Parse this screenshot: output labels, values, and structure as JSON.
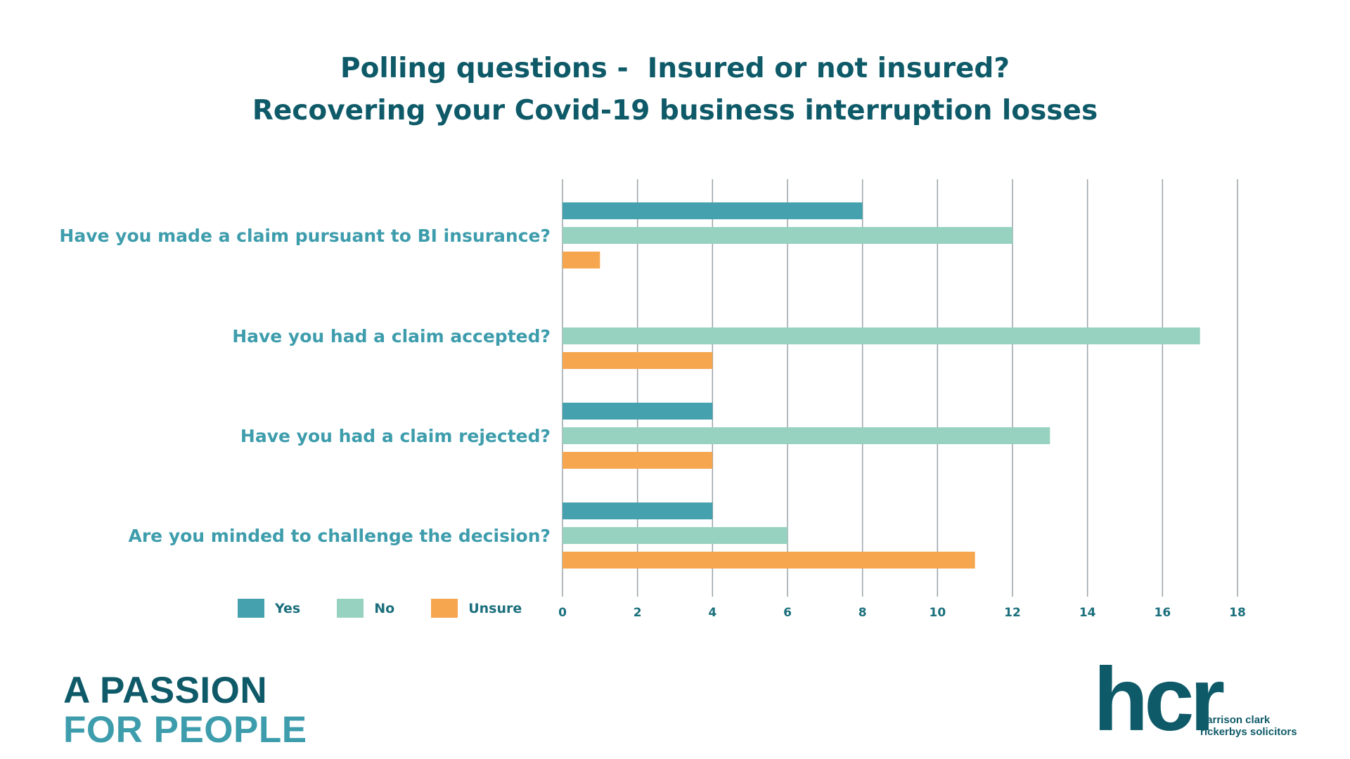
{
  "title": {
    "line1": "Polling questions -  Insured or not insured?",
    "line2": "Recovering your Covid-19 business interruption losses"
  },
  "legend": {
    "yes": "Yes",
    "no": "No",
    "unsure": "Unsure"
  },
  "colors": {
    "yes": "#44a1ad",
    "no": "#97d1bf",
    "unsure": "#f5a64f",
    "label": "#3e9dac",
    "title": "#0e5a68",
    "grid": "#9aa3a6"
  },
  "chart_data": {
    "type": "bar",
    "orientation": "horizontal",
    "categories": [
      "Have you made a claim pursuant to BI insurance?",
      "Have you had a claim accepted?",
      "Have you had a claim rejected?",
      "Are you minded to challenge the decision?"
    ],
    "series": [
      {
        "name": "Yes",
        "values": [
          8,
          0,
          4,
          4
        ]
      },
      {
        "name": "No",
        "values": [
          12,
          17,
          13,
          6
        ]
      },
      {
        "name": "Unsure",
        "values": [
          1,
          4,
          4,
          11
        ]
      }
    ],
    "xlim": [
      0,
      18
    ],
    "xticks": [
      "0",
      "2",
      "4",
      "6",
      "8",
      "10",
      "12",
      "14",
      "16",
      "18"
    ],
    "grid": "vertical",
    "legend_position": "bottom-left"
  },
  "brand": {
    "line1": "A PASSION",
    "line2": "FOR PEOPLE"
  },
  "logo": {
    "mark": "hcr",
    "line1": "harrison clark",
    "line2": "rickerbys solicitors"
  }
}
